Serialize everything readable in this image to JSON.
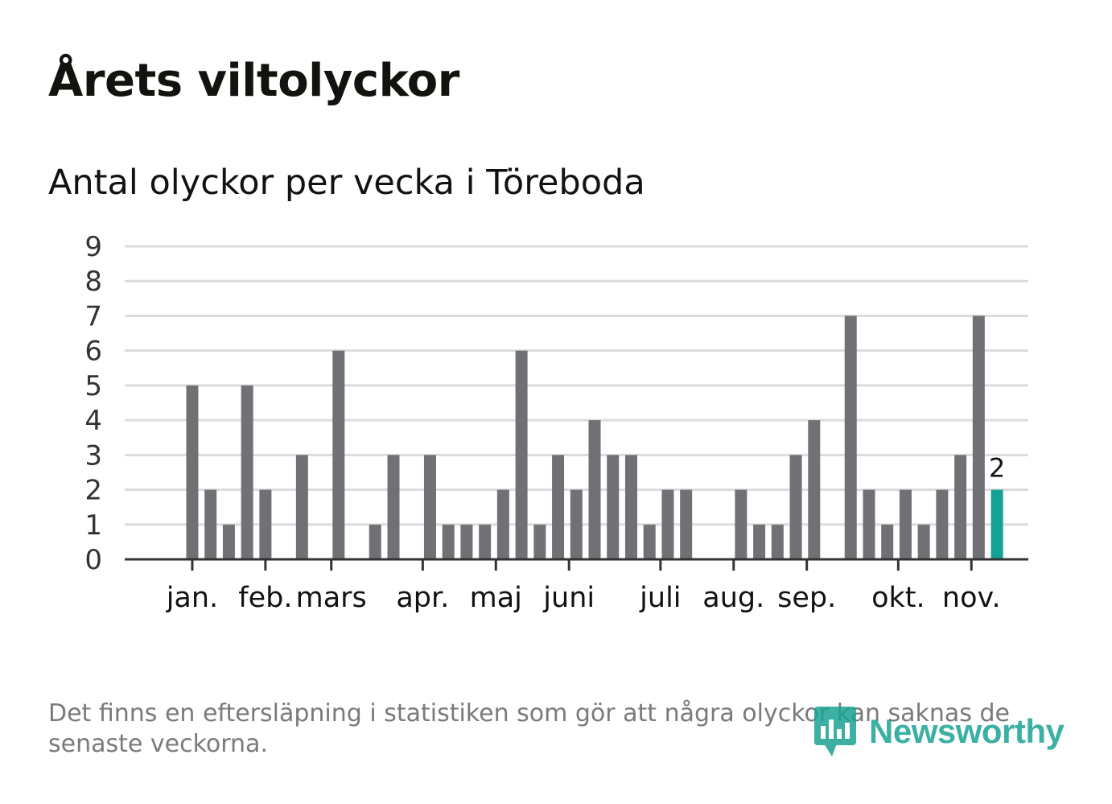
{
  "header": {
    "title": "Årets viltolyckor",
    "subtitle": "Antal olyckor per vecka i Töreboda"
  },
  "footnote": "Det finns en eftersläpning i statistiken som gör att några olyckor kan saknas de senaste veckorna.",
  "brand": {
    "name": "Newsworthy"
  },
  "colors": {
    "bar": "#717075",
    "highlight": "#13a296",
    "grid": "#dcdcdc",
    "axis": "#333333",
    "text": "#12130f"
  },
  "chart_data": {
    "type": "bar",
    "title": "Antal olyckor per vecka i Töreboda",
    "xlabel": "",
    "ylabel": "",
    "ylim": [
      0,
      9
    ],
    "yticks": [
      "0",
      "1",
      "2",
      "3",
      "4",
      "5",
      "6",
      "7",
      "8",
      "9"
    ],
    "week_values": [
      0,
      0,
      5,
      2,
      1,
      5,
      2,
      0,
      3,
      0,
      6,
      0,
      1,
      3,
      0,
      3,
      1,
      1,
      1,
      2,
      6,
      1,
      3,
      2,
      4,
      3,
      3,
      1,
      2,
      2,
      0,
      0,
      2,
      1,
      1,
      3,
      4,
      0,
      7,
      2,
      1,
      2,
      1,
      2,
      3,
      7,
      2
    ],
    "month_labels": [
      {
        "label": "jan.",
        "week": 2
      },
      {
        "label": "feb.",
        "week": 6
      },
      {
        "label": "mars",
        "week": 9.6
      },
      {
        "label": "apr.",
        "week": 14.6
      },
      {
        "label": "maj",
        "week": 18.6
      },
      {
        "label": "juni",
        "week": 22.6
      },
      {
        "label": "juli",
        "week": 27.6
      },
      {
        "label": "aug.",
        "week": 31.6
      },
      {
        "label": "sep.",
        "week": 35.6
      },
      {
        "label": "okt.",
        "week": 40.6
      },
      {
        "label": "nov.",
        "week": 44.6
      }
    ],
    "highlight_index": 46,
    "highlight_label": "2",
    "grid": true,
    "legend": "none"
  }
}
